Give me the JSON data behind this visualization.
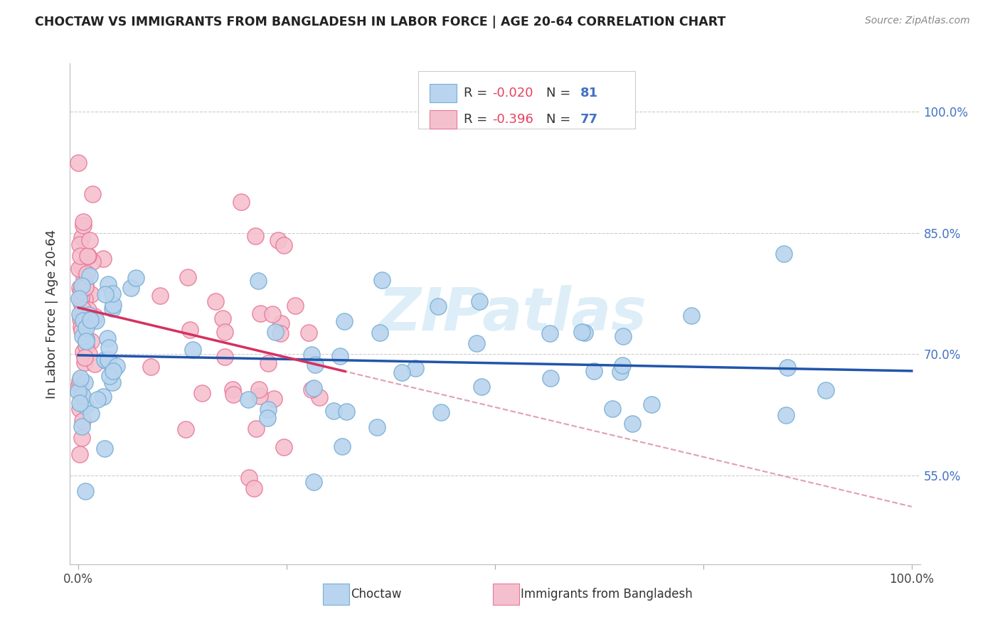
{
  "title": "CHOCTAW VS IMMIGRANTS FROM BANGLADESH IN LABOR FORCE | AGE 20-64 CORRELATION CHART",
  "source": "Source: ZipAtlas.com",
  "ylabel": "In Labor Force | Age 20-64",
  "xlim": [
    -0.01,
    1.01
  ],
  "ylim": [
    0.44,
    1.06
  ],
  "ytick_values": [
    0.55,
    0.7,
    0.85,
    1.0
  ],
  "choctaw_color": "#b8d4ee",
  "choctaw_edge": "#7aafd4",
  "bangladesh_color": "#f5c0ce",
  "bangladesh_edge": "#e8799a",
  "trend_choctaw_color": "#2255aa",
  "trend_bangladesh_color": "#d63060",
  "trend_dashed_color": "#e0a0b0",
  "watermark_color": "#ddeef8",
  "r_choctaw": -0.02,
  "n_choctaw": 81,
  "r_bangladesh": -0.396,
  "n_bangladesh": 77
}
